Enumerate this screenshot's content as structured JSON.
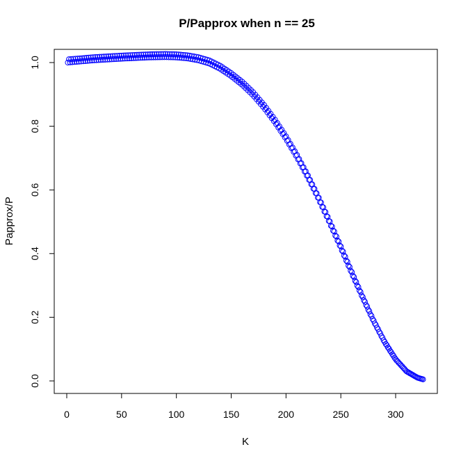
{
  "chart_data": {
    "type": "scatter",
    "title": "P/Papprox when n == 25",
    "xlabel": "K",
    "ylabel": "Papprox/P",
    "xlim": [
      0,
      330
    ],
    "ylim": [
      0.0,
      1.0
    ],
    "x_ticks": [
      0,
      50,
      100,
      150,
      200,
      250,
      300
    ],
    "y_ticks": [
      0.0,
      0.2,
      0.4,
      0.6,
      0.8,
      1.0
    ],
    "grid": false,
    "legend": "none",
    "marker": "open-circle",
    "color": "#0000ff",
    "series_rule": "two interleaved bands: even K upper, odd K lower; y ~ 1.005 at K=1 rising to ~1.02 near K=90, falling to ~0.005 at K=325",
    "x": [
      1,
      25,
      50,
      75,
      90,
      100,
      110,
      120,
      130,
      140,
      150,
      160,
      170,
      180,
      190,
      200,
      210,
      220,
      230,
      240,
      250,
      260,
      270,
      280,
      290,
      300,
      310,
      320,
      325
    ],
    "y": [
      1.005,
      1.012,
      1.017,
      1.021,
      1.022,
      1.021,
      1.018,
      1.012,
      1.002,
      0.985,
      0.962,
      0.935,
      0.902,
      0.862,
      0.816,
      0.764,
      0.706,
      0.642,
      0.572,
      0.498,
      0.42,
      0.34,
      0.262,
      0.188,
      0.122,
      0.068,
      0.03,
      0.01,
      0.005
    ],
    "band_offset": 0.01,
    "k_range": [
      1,
      325
    ]
  }
}
